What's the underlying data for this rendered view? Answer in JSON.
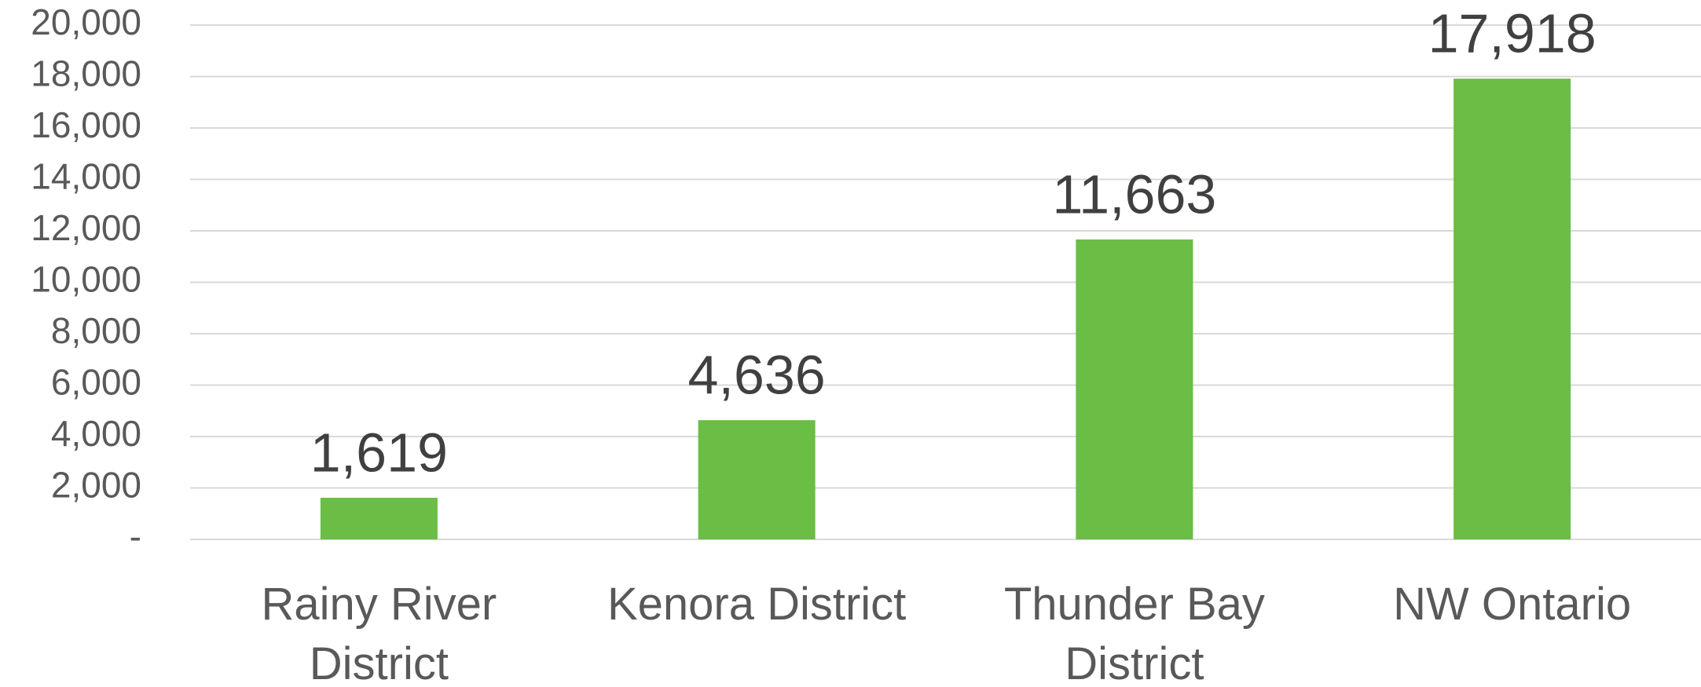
{
  "chart_data": {
    "type": "bar",
    "categories": [
      "Rainy River District",
      "Kenora District",
      "Thunder Bay District",
      "NW Ontario"
    ],
    "values": [
      1619,
      4636,
      11663,
      17918
    ],
    "value_labels": [
      "1,619",
      "4,636",
      "11,663",
      "17,918"
    ],
    "color": "#6abd45",
    "ylim": [
      0,
      20000
    ],
    "yticks": [
      {
        "value": 0,
        "label": "-"
      },
      {
        "value": 2000,
        "label": "2,000"
      },
      {
        "value": 4000,
        "label": "4,000"
      },
      {
        "value": 6000,
        "label": "6,000"
      },
      {
        "value": 8000,
        "label": "8,000"
      },
      {
        "value": 10000,
        "label": "10,000"
      },
      {
        "value": 12000,
        "label": "12,000"
      },
      {
        "value": 14000,
        "label": "14,000"
      },
      {
        "value": 16000,
        "label": "16,000"
      },
      {
        "value": 18000,
        "label": "18,000"
      },
      {
        "value": 20000,
        "label": "20,000"
      }
    ],
    "grid": true
  }
}
